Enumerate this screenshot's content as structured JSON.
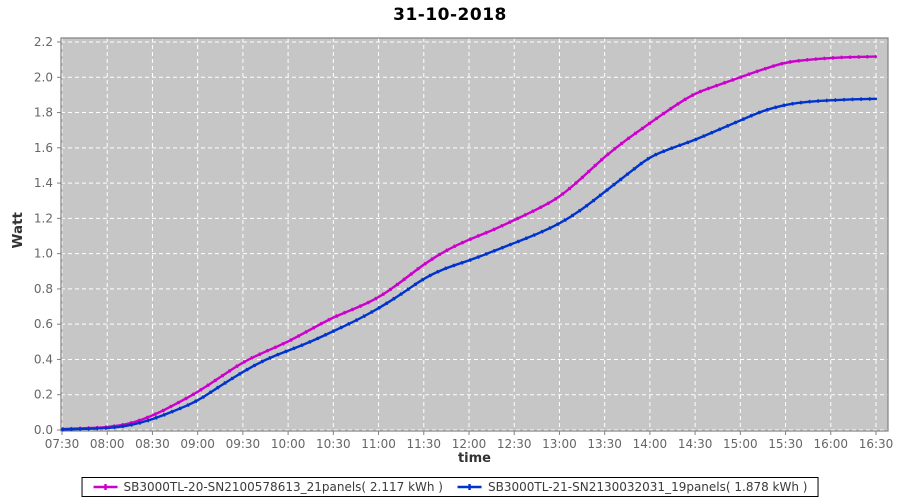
{
  "chart_data": {
    "type": "line",
    "title": "31-10-2018",
    "xlabel": "time",
    "ylabel": "Watt",
    "ylim": [
      0.0,
      2.2
    ],
    "y_tick_labels": [
      "0.0",
      "0.2",
      "0.4",
      "0.6",
      "0.8",
      "1.0",
      "1.2",
      "1.4",
      "1.6",
      "1.8",
      "2.0",
      "2.2"
    ],
    "x_tick_labels": [
      "07:30",
      "08:00",
      "08:30",
      "09:00",
      "09:30",
      "10:00",
      "10:30",
      "11:00",
      "11:30",
      "12:00",
      "12:30",
      "13:00",
      "13:30",
      "14:00",
      "14:30",
      "15:00",
      "15:30",
      "16:00",
      "16:30"
    ],
    "grid": "white dashed lines on gray plot background",
    "legend_position": "bottom-center",
    "x": [
      "07:30",
      "07:45",
      "08:00",
      "08:15",
      "08:30",
      "08:45",
      "09:00",
      "09:15",
      "09:30",
      "09:45",
      "10:00",
      "10:15",
      "10:30",
      "10:45",
      "11:00",
      "11:15",
      "11:30",
      "11:45",
      "12:00",
      "12:15",
      "12:30",
      "12:45",
      "13:00",
      "13:15",
      "13:30",
      "13:45",
      "14:00",
      "14:15",
      "14:30",
      "14:45",
      "15:00",
      "15:15",
      "15:30",
      "15:45",
      "16:00",
      "16:15",
      "16:30"
    ],
    "series": [
      {
        "name": "SB3000TL-20-SN2100578613_21panels( 2.117 kWh )",
        "color": "#cc00cc",
        "final_value_kwh": "2.117",
        "values": [
          0.005,
          0.01,
          0.015,
          0.035,
          0.08,
          0.145,
          0.215,
          0.3,
          0.385,
          0.445,
          0.5,
          0.57,
          0.64,
          0.69,
          0.75,
          0.84,
          0.94,
          1.02,
          1.08,
          1.13,
          1.19,
          1.25,
          1.32,
          1.43,
          1.55,
          1.65,
          1.74,
          1.83,
          1.91,
          1.955,
          2.0,
          2.045,
          2.085,
          2.1,
          2.11,
          2.115,
          2.117
        ]
      },
      {
        "name": "SB3000TL-21-SN2130032031_19panels( 1.878 kWh )",
        "color": "#0033cc",
        "final_value_kwh": "1.878",
        "values": [
          0.003,
          0.006,
          0.01,
          0.025,
          0.06,
          0.11,
          0.165,
          0.25,
          0.33,
          0.4,
          0.45,
          0.5,
          0.56,
          0.62,
          0.69,
          0.77,
          0.86,
          0.92,
          0.96,
          1.01,
          1.06,
          1.11,
          1.17,
          1.25,
          1.35,
          1.45,
          1.55,
          1.6,
          1.645,
          1.7,
          1.755,
          1.81,
          1.845,
          1.862,
          1.87,
          1.875,
          1.878
        ]
      }
    ],
    "colors": {
      "plot_bg": "#c6c6c6",
      "grid": "#ffffff",
      "plot_border": "#808080",
      "tick": "#808080",
      "tick_label": "#666666"
    }
  }
}
